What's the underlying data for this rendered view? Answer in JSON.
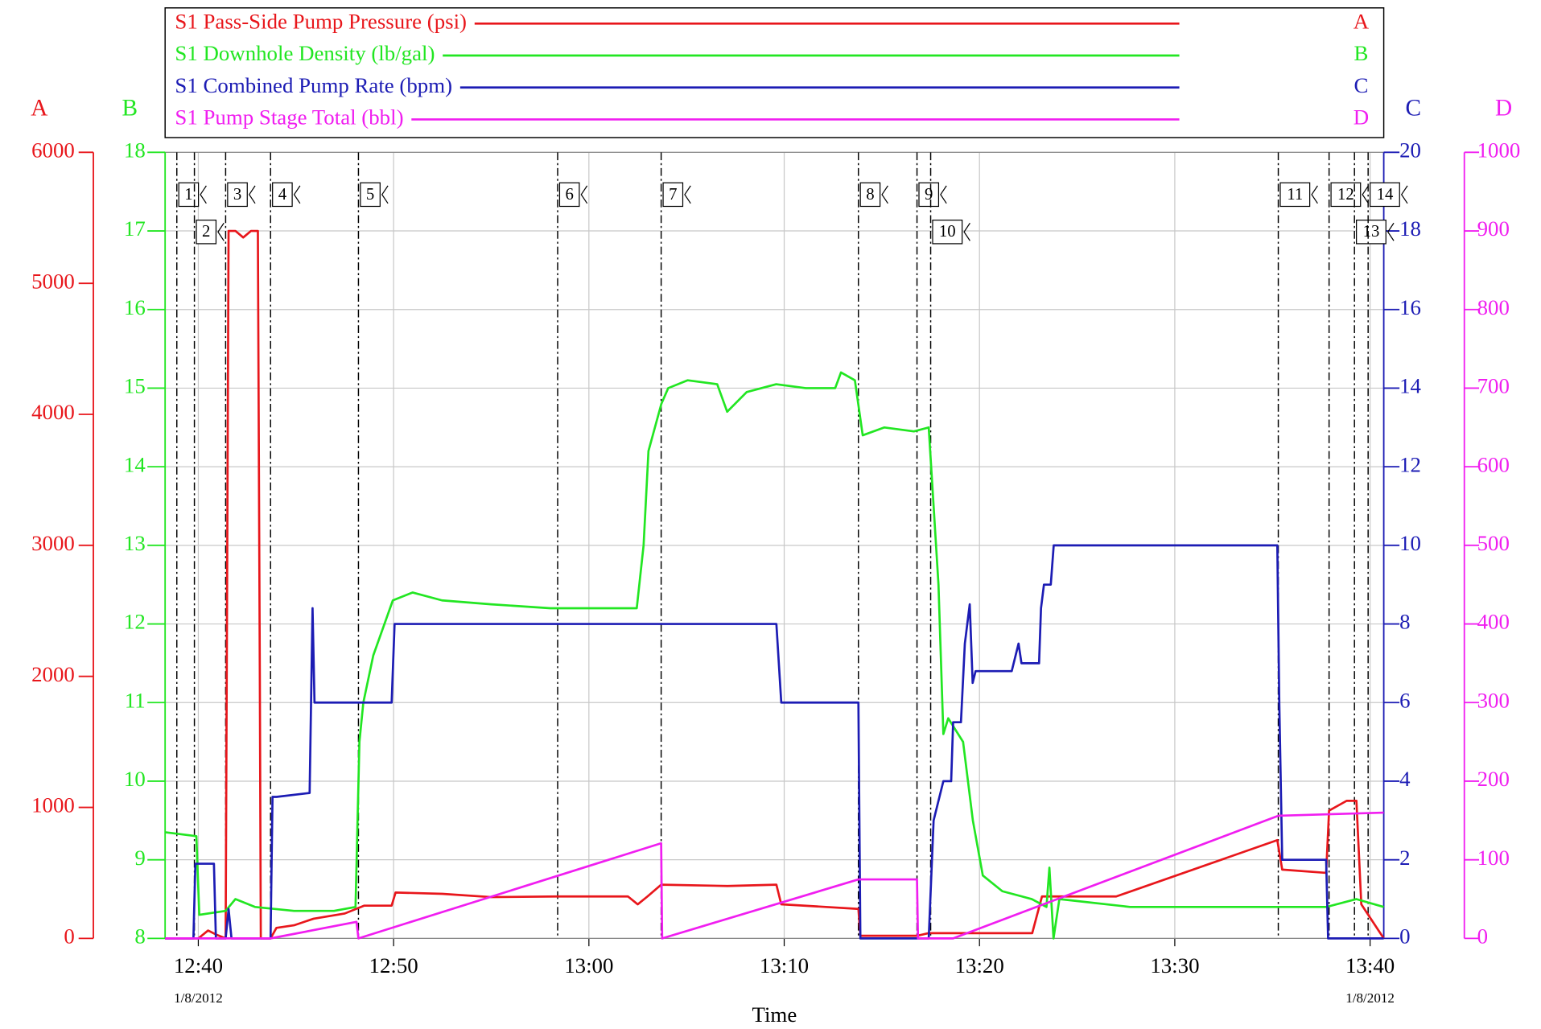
{
  "chart_data": {
    "type": "line",
    "x_label": "Time",
    "x_date_label": "1/8/2012",
    "xlim": [
      758.3,
      820.7
    ],
    "xticks": [
      {
        "value": 760,
        "label": "12:40"
      },
      {
        "value": 770,
        "label": "12:50"
      },
      {
        "value": 780,
        "label": "13:00"
      },
      {
        "value": 790,
        "label": "13:10"
      },
      {
        "value": 800,
        "label": "13:20"
      },
      {
        "value": 810,
        "label": "13:30"
      },
      {
        "value": 820,
        "label": "13:40"
      }
    ],
    "grid": true,
    "y_axes": [
      {
        "label": "A",
        "color": "#e8161b",
        "ylim": [
          0,
          6000
        ],
        "yticks": [
          0,
          1000,
          2000,
          3000,
          4000,
          5000,
          6000
        ]
      },
      {
        "label": "B",
        "color": "#22e622",
        "ylim": [
          8,
          18
        ],
        "yticks": [
          8,
          9,
          10,
          11,
          12,
          13,
          14,
          15,
          16,
          17,
          18
        ]
      },
      {
        "label": "C",
        "color": "#1c1cb4",
        "ylim": [
          0,
          20
        ],
        "yticks": [
          0,
          2,
          4,
          6,
          8,
          10,
          12,
          14,
          16,
          18,
          20
        ]
      },
      {
        "label": "D",
        "color": "#f01ef0",
        "ylim": [
          0,
          1000
        ],
        "yticks": [
          0,
          100,
          200,
          300,
          400,
          500,
          600,
          700,
          800,
          900,
          1000
        ]
      }
    ],
    "series": [
      {
        "name": "S1 Pass-Side Pump Pressure (psi)",
        "color": "#e8161b",
        "axis": 0,
        "x": [
          758.3,
          760,
          760.5,
          760.9,
          761.4,
          761.55,
          761.9,
          762.3,
          762.7,
          763.05,
          763.15,
          763.2,
          763.7,
          764,
          764.9,
          765.9,
          767.5,
          768.5,
          769.9,
          770.1,
          772.5,
          775,
          778.4,
          782,
          782.5,
          783,
          783.7,
          787.1,
          789.6,
          789.85,
          793.8,
          793.9,
          796.8,
          797.4,
          802.7,
          803.2,
          807,
          815.25,
          815.5,
          817.75,
          817.9,
          818.8,
          819.3,
          819.55,
          820.7
        ],
        "values": [
          0,
          0,
          60,
          30,
          0,
          5400,
          5400,
          5350,
          5400,
          5400,
          2000,
          0,
          0,
          80,
          100,
          150,
          190,
          250,
          250,
          350,
          340,
          315,
          320,
          320,
          260,
          320,
          410,
          400,
          410,
          260,
          225,
          20,
          20,
          40,
          40,
          320,
          320,
          750,
          525,
          500,
          975,
          1050,
          1050,
          260,
          0
        ]
      },
      {
        "name": "S1 Downhole Density (lb/gal)",
        "color": "#22e622",
        "axis": 1,
        "x": [
          758.3,
          759.9,
          760.05,
          761.4,
          761.9,
          762.9,
          764.9,
          766.95,
          768.05,
          768.25,
          768.45,
          768.96,
          769.96,
          770.97,
          772.48,
          774.99,
          778.02,
          780.03,
          782.45,
          782.8,
          783.05,
          783.71,
          784.06,
          785.06,
          786.57,
          787.08,
          788.08,
          789.59,
          791.1,
          792.61,
          792.91,
          793.62,
          794.02,
          795.13,
          796.64,
          797.4,
          797.65,
          797.9,
          798.15,
          798.4,
          799.16,
          799.66,
          800.17,
          801.17,
          802.68,
          803.43,
          803.58,
          803.79,
          804.09,
          807.71,
          815.26,
          817.77,
          819.29,
          820.7
        ],
        "values": [
          9.35,
          9.3,
          8.3,
          8.35,
          8.5,
          8.4,
          8.35,
          8.35,
          8.4,
          10.5,
          11,
          11.6,
          12.3,
          12.4,
          12.3,
          12.25,
          12.2,
          12.2,
          12.2,
          13,
          14.2,
          14.8,
          15,
          15.1,
          15.05,
          14.7,
          14.95,
          15.05,
          15,
          15,
          15.2,
          15.1,
          14.4,
          14.5,
          14.45,
          14.5,
          13.5,
          12.5,
          10.6,
          10.8,
          10.5,
          9.5,
          8.8,
          8.6,
          8.5,
          8.4,
          8.9,
          8,
          8.5,
          8.4,
          8.4,
          8.4,
          8.5,
          8.4
        ]
      },
      {
        "name": "S1 Combined Pump Rate (bpm)",
        "color": "#1c1cb4",
        "axis": 2,
        "x": [
          758.3,
          759.75,
          759.85,
          760.8,
          760.9,
          761.4,
          761.55,
          761.7,
          763.7,
          763.8,
          764,
          765.7,
          765.85,
          765.95,
          768.15,
          769.9,
          770.05,
          789.6,
          789.85,
          793.8,
          793.9,
          797.4,
          797.65,
          798.15,
          798.55,
          798.65,
          799.05,
          799.25,
          799.5,
          799.65,
          799.8,
          801.65,
          802,
          802.15,
          803.05,
          803.15,
          803.3,
          803.65,
          803.8,
          815.25,
          815.35,
          815.5,
          817.75,
          817.85,
          820.7
        ],
        "values": [
          0,
          0,
          1.9,
          1.9,
          0,
          0,
          0.75,
          0,
          0,
          3.6,
          3.6,
          3.7,
          8.4,
          6,
          6,
          6,
          8,
          8,
          6,
          6,
          0,
          0,
          3,
          4,
          4,
          5.5,
          5.5,
          7.5,
          8.5,
          6.5,
          6.8,
          6.8,
          7.5,
          7,
          7,
          8.4,
          9,
          9,
          10,
          10,
          6,
          2,
          2,
          0,
          0
        ]
      },
      {
        "name": "S1 Pump Stage Total (bbl)",
        "color": "#f01ef0",
        "axis": 3,
        "x": [
          758.3,
          763.7,
          768.1,
          768.2,
          783.7,
          783.75,
          793.8,
          796.8,
          796.85,
          798.65,
          815.3,
          820.7
        ],
        "values": [
          0,
          0,
          21,
          0,
          121,
          0,
          75,
          75,
          0,
          0,
          156,
          160
        ]
      }
    ],
    "events": {
      "labels": [
        "1",
        "2",
        "3",
        "4",
        "5",
        "6",
        "7",
        "8",
        "9",
        "10",
        "11",
        "12",
        "13",
        "14"
      ],
      "x": [
        758.9,
        759.8,
        761.4,
        763.7,
        768.2,
        778.4,
        783.7,
        793.8,
        796.8,
        797.5,
        815.3,
        817.9,
        819.2,
        819.9
      ]
    }
  }
}
